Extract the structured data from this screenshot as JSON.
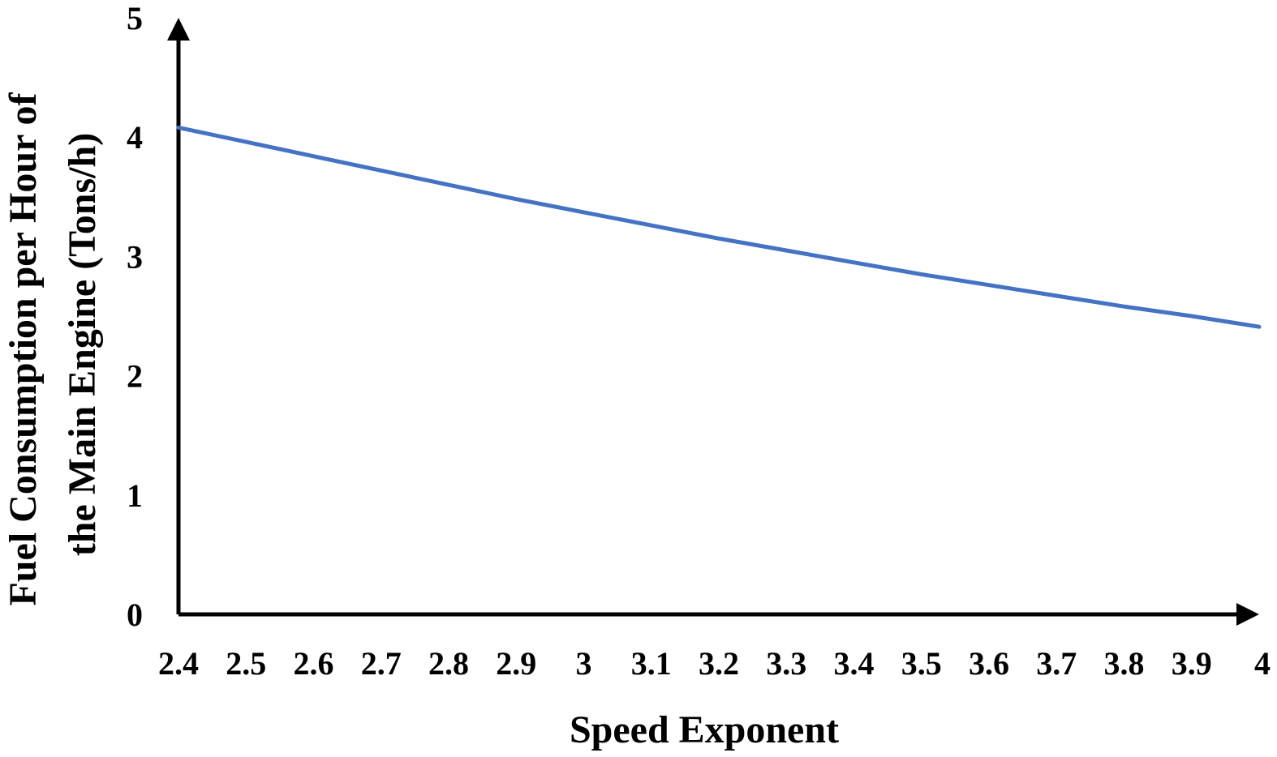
{
  "chart_data": {
    "type": "line",
    "title": "",
    "xlabel": "Speed Exponent",
    "ylabel_lines": [
      "Fuel Consumption per Hour of",
      "the Main Engine (Tons/h)"
    ],
    "x_ticks": [
      "2.4",
      "2.5",
      "2.6",
      "2.7",
      "2.8",
      "2.9",
      "3",
      "3.1",
      "3.2",
      "3.3",
      "3.4",
      "3.5",
      "3.6",
      "3.7",
      "3.8",
      "3.9",
      "4"
    ],
    "y_ticks": [
      "0",
      "1",
      "2",
      "3",
      "4",
      "5"
    ],
    "xlim": [
      2.4,
      4.0
    ],
    "ylim": [
      0,
      5
    ],
    "grid": false,
    "legend": "none",
    "series": [
      {
        "color": "#4472C4",
        "x": [
          2.4,
          2.5,
          2.6,
          2.7,
          2.8,
          2.9,
          3.0,
          3.1,
          3.2,
          3.3,
          3.4,
          3.5,
          3.6,
          3.7,
          3.8,
          3.9,
          4.0
        ],
        "y": [
          4.08,
          3.96,
          3.84,
          3.72,
          3.6,
          3.48,
          3.37,
          3.26,
          3.15,
          3.05,
          2.95,
          2.85,
          2.76,
          2.67,
          2.58,
          2.5,
          2.41
        ]
      }
    ]
  }
}
